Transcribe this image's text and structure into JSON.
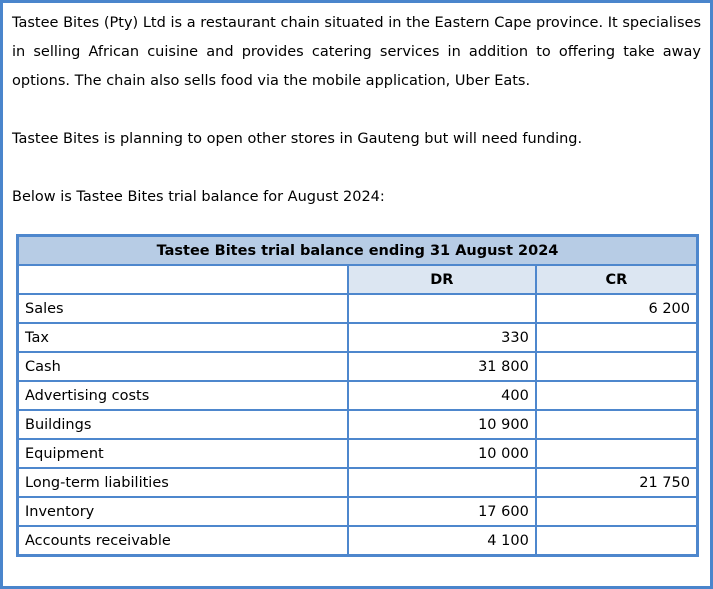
{
  "document": {
    "paragraph1": "Tastee Bites (Pty) Ltd is a restaurant chain situated in the Eastern Cape province. It specialises in selling African cuisine and provides catering services in addition to offering take away options. The chain also sells food via the mobile application, Uber Eats.",
    "paragraph2": "Tastee Bites is planning to open other stores in Gauteng but will need funding.",
    "paragraph3": "Below is Tastee Bites trial balance for August 2024:"
  },
  "table": {
    "title": "Tastee Bites trial balance ending 31 August 2024",
    "columns": {
      "account": "",
      "dr": "DR",
      "cr": "CR"
    },
    "rows": [
      {
        "account": "Sales",
        "dr": "",
        "cr": "6 200"
      },
      {
        "account": "Tax",
        "dr": "330",
        "cr": ""
      },
      {
        "account": "Cash",
        "dr": "31 800",
        "cr": ""
      },
      {
        "account": "Advertising costs",
        "dr": "400",
        "cr": ""
      },
      {
        "account": "Buildings",
        "dr": "10 900",
        "cr": ""
      },
      {
        "account": "Equipment",
        "dr": "10 000",
        "cr": ""
      },
      {
        "account": "Long-term liabilities",
        "dr": "",
        "cr": "21 750"
      },
      {
        "account": "Inventory",
        "dr": "17 600",
        "cr": ""
      },
      {
        "account": "Accounts receivable",
        "dr": "4 100",
        "cr": ""
      }
    ]
  },
  "colors": {
    "page_border_blue": "#4a85cc",
    "table_border_blue": "#4e87cd",
    "title_row_fill": "#b7cce5",
    "header_row_fill": "#dce6f2",
    "text": "#000000",
    "page_background": "#ffffff"
  }
}
